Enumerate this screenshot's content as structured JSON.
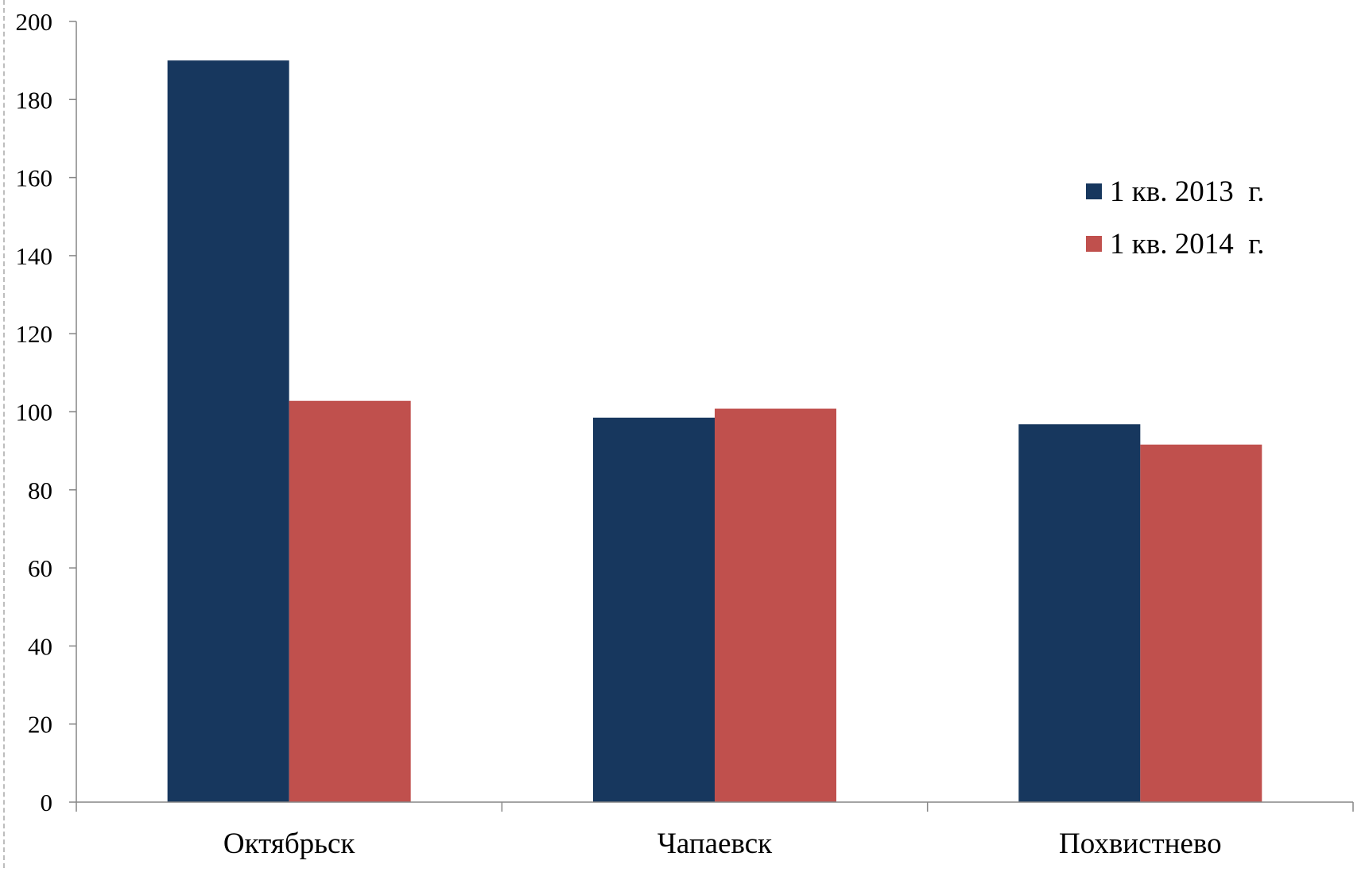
{
  "chart_data": {
    "type": "bar",
    "title": "",
    "xlabel": "",
    "ylabel": "",
    "categories": [
      "Октябрьск",
      "Чапаевск",
      "Похвистнево"
    ],
    "series": [
      {
        "name": "1 кв. 2013  г.",
        "values": [
          190,
          98.5,
          96.8
        ],
        "color": "#17375e"
      },
      {
        "name": "1 кв. 2014  г.",
        "values": [
          102.8,
          100.8,
          91.6
        ],
        "color": "#c0504d"
      }
    ],
    "ylim": [
      0,
      200
    ],
    "yticks": [
      "0",
      "20",
      "40",
      "60",
      "80",
      "100",
      "120",
      "140",
      "160",
      "180",
      "200"
    ],
    "grid": false,
    "legend_position": "top-right"
  }
}
